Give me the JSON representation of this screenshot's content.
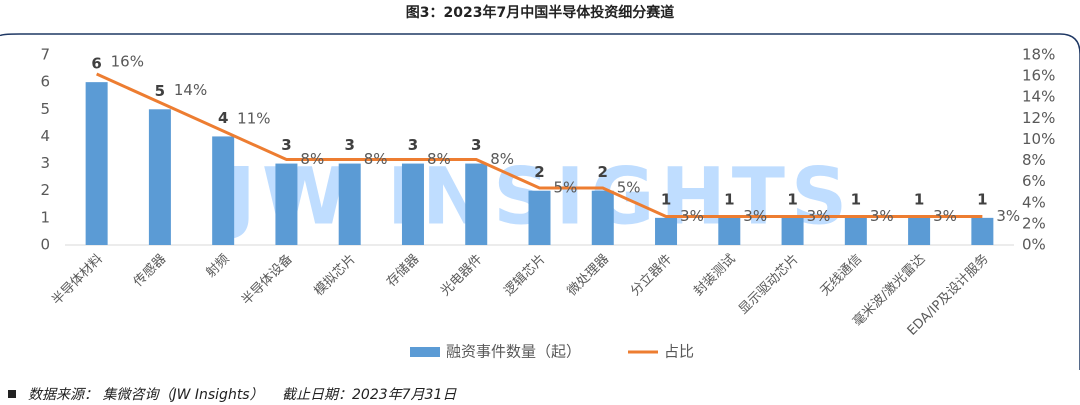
{
  "chart_data": {
    "type": "bar",
    "title": "图3：2023年7月中国半导体投资细分赛道",
    "watermark": "JW INSIGHTS",
    "categories": [
      "半导体材料",
      "传感器",
      "射频",
      "半导体设备",
      "模拟芯片",
      "存储器",
      "光电器件",
      "逻辑芯片",
      "微处理器",
      "分立器件",
      "封装测试",
      "显示驱动芯片",
      "无线通信",
      "毫米波/激光雷达",
      "EDA/IP及设计服务"
    ],
    "series": [
      {
        "name": "融资事件数量（起）",
        "type": "bar",
        "color": "#5b9bd5",
        "values": [
          6,
          5,
          4,
          3,
          3,
          3,
          3,
          2,
          2,
          1,
          1,
          1,
          1,
          1,
          1
        ]
      },
      {
        "name": "占比",
        "type": "line",
        "axis": "y2",
        "color": "#ed7d31",
        "values": [
          16.2,
          13.5,
          10.8,
          8.1,
          8.1,
          8.1,
          8.1,
          5.4,
          5.4,
          2.7,
          2.7,
          2.7,
          2.7,
          2.7,
          2.7
        ],
        "value_labels": [
          "16%",
          "14%",
          "11%",
          "8%",
          "8%",
          "8%",
          "8%",
          "5%",
          "5%",
          "3%",
          "3%",
          "3%",
          "3%",
          "3%",
          "3%"
        ]
      }
    ],
    "ylim": [
      0,
      7
    ],
    "yticks": [
      0,
      1,
      2,
      3,
      4,
      5,
      6,
      7
    ],
    "y2lim": [
      0,
      18
    ],
    "y2ticks": [
      {
        "value": 0,
        "label": "0%"
      },
      {
        "value": 2,
        "label": "2%"
      },
      {
        "value": 4,
        "label": "4%"
      },
      {
        "value": 6,
        "label": "6%"
      },
      {
        "value": 8,
        "label": "8%"
      },
      {
        "value": 10,
        "label": "10%"
      },
      {
        "value": 12,
        "label": "12%"
      },
      {
        "value": 14,
        "label": "14%"
      },
      {
        "value": 16,
        "label": "16%"
      },
      {
        "value": 18,
        "label": "18%"
      }
    ],
    "legend": "bottom",
    "source": "数据来源： 集微咨询（JW Insights）",
    "note": "截止日期：2023年7月31日"
  }
}
